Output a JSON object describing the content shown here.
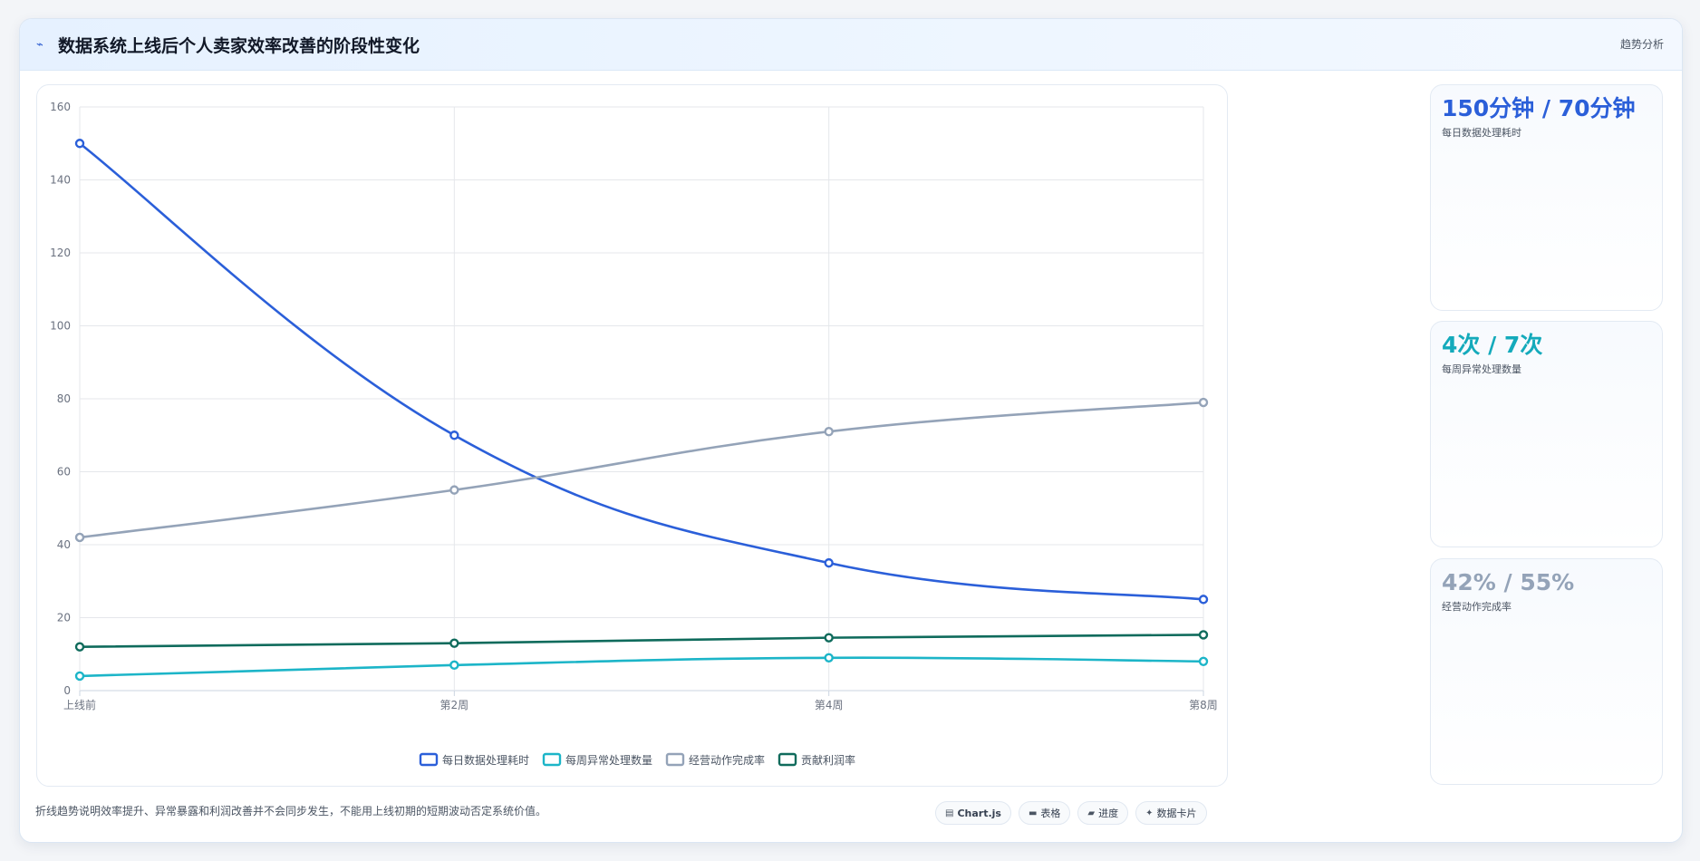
{
  "header": {
    "icon": "trend-line-icon",
    "title": "数据系统上线后个人卖家效率改善的阶段性变化",
    "tag": "趋势分析"
  },
  "chart_data": {
    "type": "line",
    "categories": [
      "上线前",
      "第2周",
      "第4周",
      "第8周"
    ],
    "ylim": [
      0,
      160
    ],
    "yticks": [
      0,
      20,
      40,
      60,
      80,
      100,
      120,
      140,
      160
    ],
    "grid": true,
    "legend_position": "bottom",
    "series": [
      {
        "name": "每日数据处理耗时",
        "color": "#2b5fd9",
        "values": [
          150,
          70,
          35,
          25
        ]
      },
      {
        "name": "每周异常处理数量",
        "color": "#1cb5c8",
        "values": [
          4,
          7,
          9,
          8
        ]
      },
      {
        "name": "经营动作完成率",
        "color": "#94a3b8",
        "values": [
          42,
          55,
          71,
          79
        ]
      },
      {
        "name": "贡献利润率",
        "color": "#0f6b5c",
        "values": [
          12,
          13,
          14.5,
          15.3
        ]
      }
    ]
  },
  "stats": [
    {
      "value": "150分钟 / 70分钟",
      "label": "每日数据处理耗时",
      "color": "#2b5fd9"
    },
    {
      "value": "4次 / 7次",
      "label": "每周异常处理数量",
      "color": "#14aabb"
    },
    {
      "value": "42% / 55%",
      "label": "经营动作完成率",
      "color": "#94a3b8"
    }
  ],
  "footer": {
    "note": "折线趋势说明效率提升、异常暴露和利润改善并不会同步发生，不能用上线初期的短期波动否定系统价值。",
    "chips": [
      {
        "icon": "chart-icon",
        "glyph": "▤",
        "label": "Chart.js"
      },
      {
        "icon": "table-icon",
        "glyph": "▬",
        "label": "表格"
      },
      {
        "icon": "progress-icon",
        "glyph": "▰",
        "label": "进度"
      },
      {
        "icon": "sparkle-icon",
        "glyph": "✦",
        "label": "数据卡片"
      }
    ]
  }
}
